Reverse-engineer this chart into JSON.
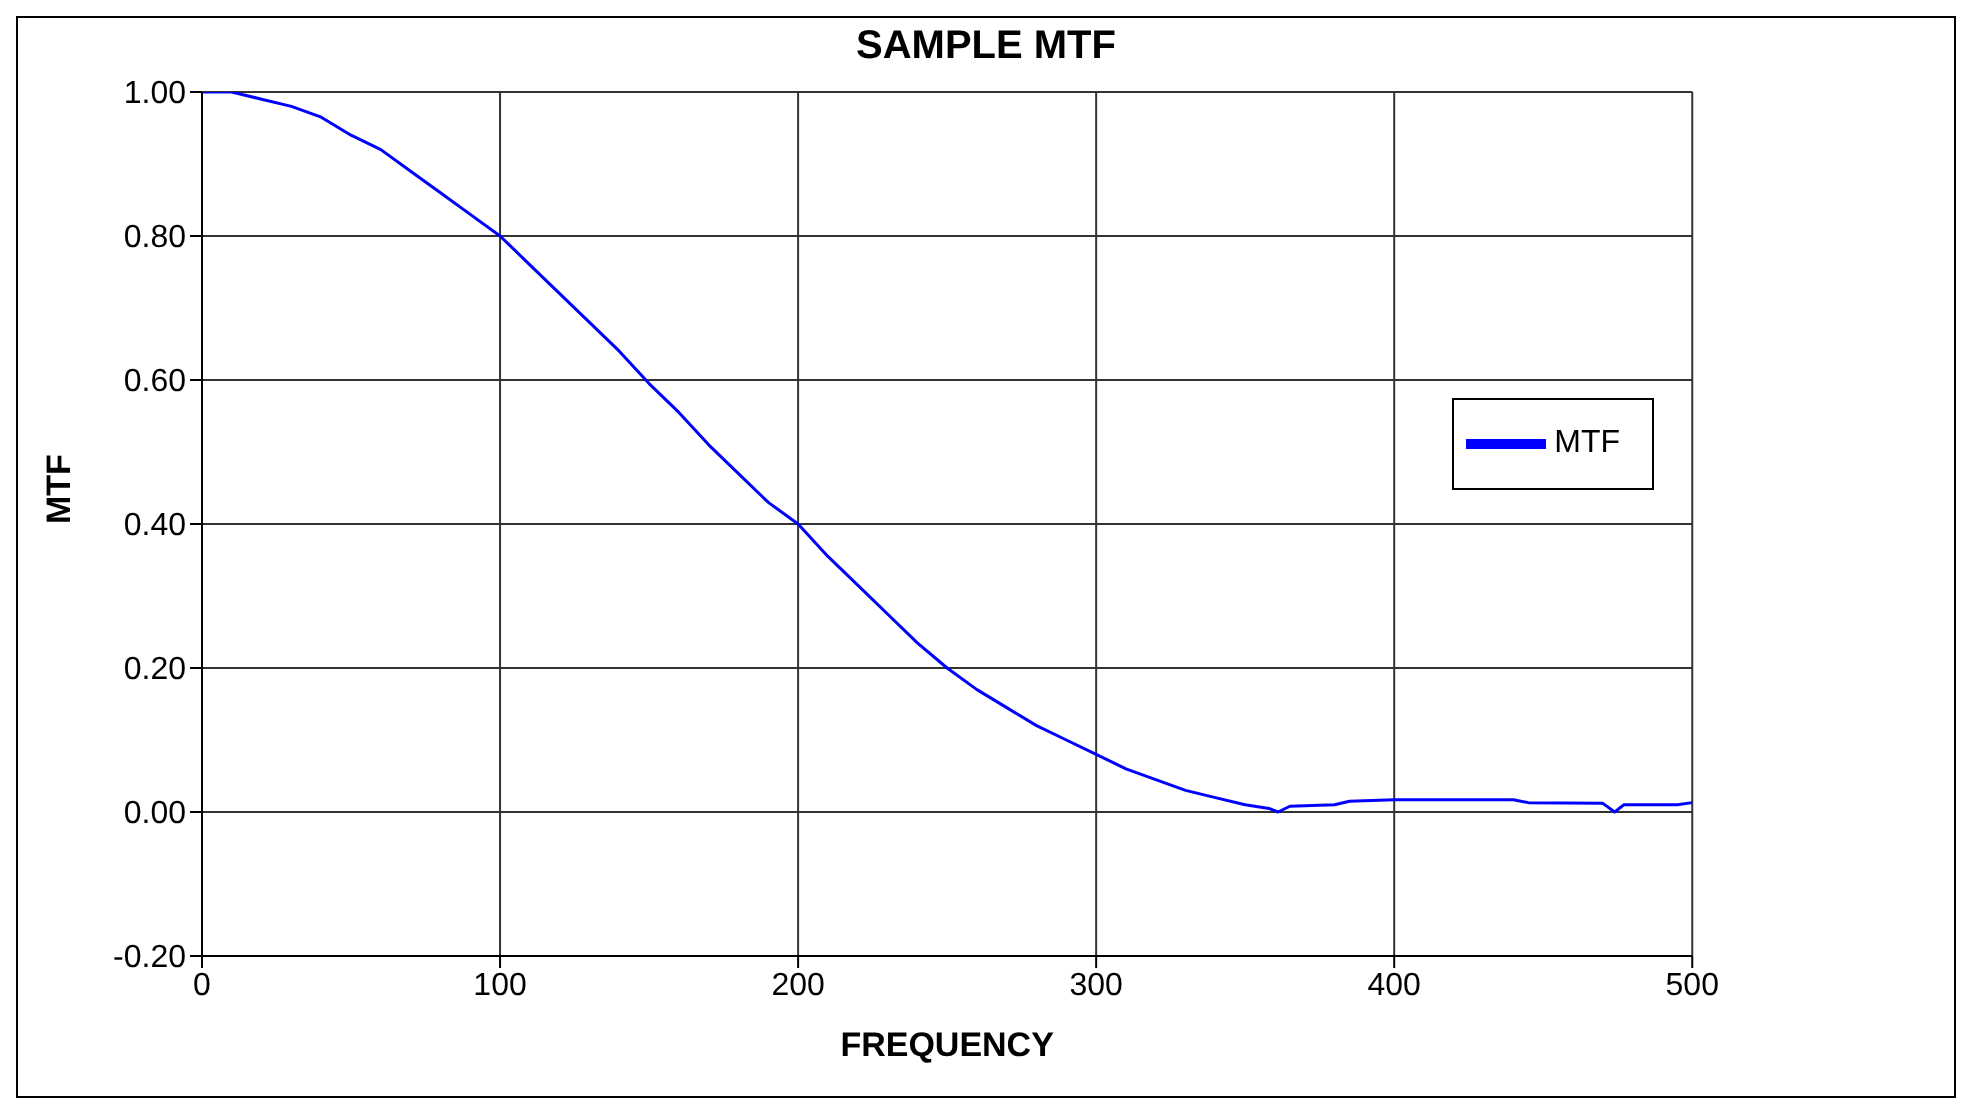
{
  "chart_data": {
    "type": "line",
    "title": "SAMPLE MTF",
    "xlabel": "FREQUENCY",
    "ylabel": "MTF",
    "x": [
      0,
      10,
      20,
      30,
      40,
      50,
      60,
      70,
      80,
      90,
      100,
      110,
      120,
      130,
      140,
      150,
      160,
      170,
      180,
      190,
      200,
      210,
      220,
      230,
      240,
      250,
      260,
      270,
      280,
      290,
      300,
      310,
      320,
      330,
      340,
      350,
      358,
      361,
      365,
      380,
      385,
      400,
      440,
      445,
      470,
      474,
      477,
      480,
      495,
      500
    ],
    "series": [
      {
        "name": "MTF",
        "color": "#0000ff",
        "values": [
          1.0,
          1.0,
          0.99,
          0.98,
          0.965,
          0.94,
          0.92,
          0.89,
          0.86,
          0.83,
          0.8,
          0.76,
          0.72,
          0.68,
          0.64,
          0.595,
          0.555,
          0.51,
          0.47,
          0.43,
          0.4,
          0.355,
          0.315,
          0.275,
          0.235,
          0.2,
          0.17,
          0.145,
          0.12,
          0.1,
          0.08,
          0.06,
          0.045,
          0.03,
          0.02,
          0.01,
          0.005,
          0.0,
          0.008,
          0.01,
          0.015,
          0.017,
          0.017,
          0.013,
          0.012,
          0.0,
          0.01,
          0.01,
          0.01,
          0.013
        ]
      }
    ],
    "xlim": [
      0,
      500
    ],
    "xticks": [
      0,
      100,
      200,
      300,
      400,
      500
    ],
    "ylim": [
      -0.2,
      1.0
    ],
    "yticks": [
      {
        "value": -0.2,
        "label": "-0.20"
      },
      {
        "value": 0,
        "label": "0.00"
      },
      {
        "value": 0.2,
        "label": "0.20"
      },
      {
        "value": 0.4,
        "label": "0.40"
      },
      {
        "value": 0.6,
        "label": "0.60"
      },
      {
        "value": 0.8,
        "label": "0.80"
      },
      {
        "value": 1.0,
        "label": "1.00"
      }
    ],
    "grid": true,
    "legend": "right",
    "marker": "none",
    "line_style": "solid"
  }
}
